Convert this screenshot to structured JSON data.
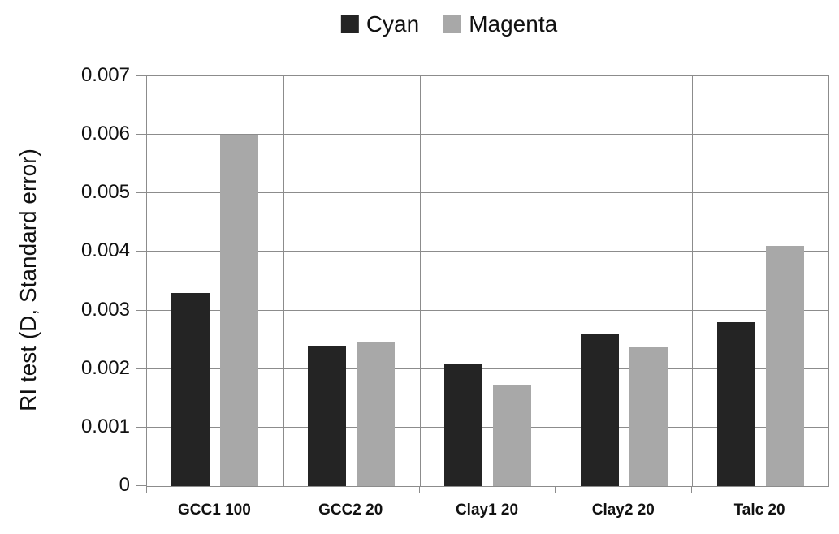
{
  "chart_data": {
    "type": "bar",
    "title": "",
    "xlabel": "",
    "ylabel": "RI test (D, Standard error)",
    "categories": [
      "GCC1 100",
      "GCC2 20",
      "Clay1 20",
      "Clay2 20",
      "Talc 20"
    ],
    "series": [
      {
        "name": "Cyan",
        "color": "#242424",
        "values": [
          0.0033,
          0.0024,
          0.0021,
          0.0026,
          0.0028
        ]
      },
      {
        "name": "Magenta",
        "color": "#a8a8a8",
        "values": [
          0.006,
          0.00245,
          0.00173,
          0.00237,
          0.0041
        ]
      }
    ],
    "ylim": [
      0,
      0.007
    ],
    "ytick_step": 0.001,
    "ytick_labels": [
      "0",
      "0.001",
      "0.002",
      "0.003",
      "0.004",
      "0.005",
      "0.006",
      "0.007"
    ],
    "grid": true,
    "legend_position": "top-center"
  },
  "colors": {
    "background": "#ffffff",
    "grid": "#8c8c8c",
    "text": "#111111",
    "series_cyan": "#242424",
    "series_magenta": "#a8a8a8"
  }
}
